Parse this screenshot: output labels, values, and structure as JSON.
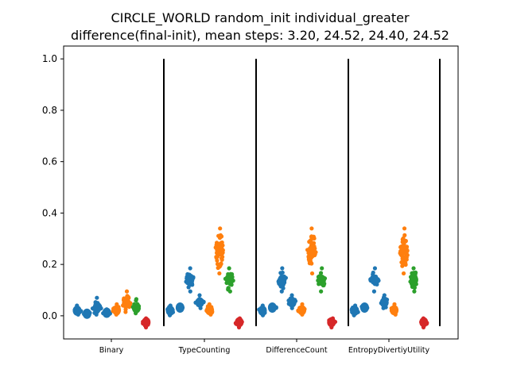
{
  "chart_data": {
    "type": "scatter",
    "title_line1": "CIRCLE_WORLD random_init individual_greater",
    "title_line2": "difference(final-init), mean steps: 3.20, 24.52, 24.40, 24.52",
    "xlabel": "",
    "ylabel": "",
    "ylim": [
      -0.09,
      1.05
    ],
    "yticks": [
      "0.0",
      "0.2",
      "0.4",
      "0.6",
      "0.8",
      "1.0"
    ],
    "categories": [
      "Binary",
      "TypeCounting",
      "DifferenceCount",
      "EntropyDivertiyUtility"
    ],
    "separators_at_y": [
      -0.04,
      1.0
    ],
    "grid": false,
    "legend": "none",
    "colors": {
      "blue": "#1f77b4",
      "orange": "#ff7f0e",
      "green": "#2ca02c",
      "red": "#d62728"
    },
    "groups": [
      {
        "category": "Binary",
        "strips": [
          {
            "color": "#1f77b4",
            "center": 0.02,
            "min": 0.005,
            "max": 0.04
          },
          {
            "color": "#1f77b4",
            "center": 0.008,
            "min": 0.0,
            "max": 0.018
          },
          {
            "color": "#1f77b4",
            "center": 0.03,
            "min": 0.005,
            "max": 0.07
          },
          {
            "color": "#1f77b4",
            "center": 0.012,
            "min": 0.002,
            "max": 0.025
          },
          {
            "color": "#ff7f0e",
            "center": 0.022,
            "min": 0.005,
            "max": 0.045
          },
          {
            "color": "#ff7f0e",
            "center": 0.05,
            "min": 0.015,
            "max": 0.095
          },
          {
            "color": "#2ca02c",
            "center": 0.03,
            "min": 0.01,
            "max": 0.065
          },
          {
            "color": "#d62728",
            "center": -0.025,
            "min": -0.045,
            "max": -0.01
          }
        ]
      },
      {
        "category": "TypeCounting",
        "strips": [
          {
            "color": "#1f77b4",
            "center": 0.02,
            "min": 0.002,
            "max": 0.04
          },
          {
            "color": "#1f77b4",
            "center": 0.032,
            "min": 0.022,
            "max": 0.042
          },
          {
            "color": "#1f77b4",
            "center": 0.14,
            "min": 0.095,
            "max": 0.185
          },
          {
            "color": "#1f77b4",
            "center": 0.052,
            "min": 0.03,
            "max": 0.08
          },
          {
            "color": "#ff7f0e",
            "center": 0.022,
            "min": 0.005,
            "max": 0.045
          },
          {
            "color": "#ff7f0e",
            "center": 0.255,
            "min": 0.165,
            "max": 0.34
          },
          {
            "color": "#2ca02c",
            "center": 0.14,
            "min": 0.095,
            "max": 0.185
          },
          {
            "color": "#d62728",
            "center": -0.025,
            "min": -0.045,
            "max": -0.01
          }
        ]
      },
      {
        "category": "DifferenceCount",
        "strips": [
          {
            "color": "#1f77b4",
            "center": 0.02,
            "min": 0.002,
            "max": 0.04
          },
          {
            "color": "#1f77b4",
            "center": 0.032,
            "min": 0.022,
            "max": 0.042
          },
          {
            "color": "#1f77b4",
            "center": 0.14,
            "min": 0.095,
            "max": 0.185
          },
          {
            "color": "#1f77b4",
            "center": 0.052,
            "min": 0.03,
            "max": 0.08
          },
          {
            "color": "#ff7f0e",
            "center": 0.022,
            "min": 0.005,
            "max": 0.045
          },
          {
            "color": "#ff7f0e",
            "center": 0.255,
            "min": 0.165,
            "max": 0.34
          },
          {
            "color": "#2ca02c",
            "center": 0.14,
            "min": 0.095,
            "max": 0.185
          },
          {
            "color": "#d62728",
            "center": -0.025,
            "min": -0.045,
            "max": -0.01
          }
        ]
      },
      {
        "category": "EntropyDivertiyUtility",
        "strips": [
          {
            "color": "#1f77b4",
            "center": 0.02,
            "min": 0.002,
            "max": 0.04
          },
          {
            "color": "#1f77b4",
            "center": 0.032,
            "min": 0.022,
            "max": 0.042
          },
          {
            "color": "#1f77b4",
            "center": 0.14,
            "min": 0.095,
            "max": 0.185
          },
          {
            "color": "#1f77b4",
            "center": 0.052,
            "min": 0.03,
            "max": 0.08
          },
          {
            "color": "#ff7f0e",
            "center": 0.022,
            "min": 0.005,
            "max": 0.045
          },
          {
            "color": "#ff7f0e",
            "center": 0.255,
            "min": 0.165,
            "max": 0.34
          },
          {
            "color": "#2ca02c",
            "center": 0.14,
            "min": 0.095,
            "max": 0.185
          },
          {
            "color": "#d62728",
            "center": -0.025,
            "min": -0.045,
            "max": -0.01
          }
        ]
      }
    ]
  }
}
